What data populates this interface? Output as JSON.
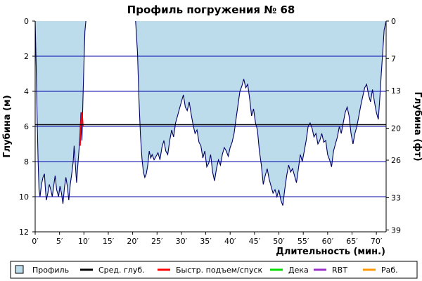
{
  "chart_data": {
    "type": "area",
    "title": "Профиль погружения № 68",
    "xlabel": "Длительность (мин.)",
    "ylabel_left": "Глубина (м)",
    "ylabel_right": "Глубина (фт)",
    "x_unit_suffix": "′",
    "xlim": [
      0,
      72
    ],
    "xticks": [
      0,
      5,
      10,
      15,
      20,
      25,
      30,
      35,
      40,
      45,
      50,
      55,
      60,
      65,
      70
    ],
    "ylim": [
      0,
      12
    ],
    "y_inverted": true,
    "yticks_m": [
      0,
      2,
      4,
      6,
      8,
      10,
      12
    ],
    "yticks_ft": [
      {
        "label": "0",
        "m": 0
      },
      {
        "label": "7",
        "m": 2.13
      },
      {
        "label": "13",
        "m": 3.96
      },
      {
        "label": "20",
        "m": 6.1
      },
      {
        "label": "26",
        "m": 7.92
      },
      {
        "label": "33",
        "m": 10.06
      },
      {
        "label": "39",
        "m": 11.89
      }
    ],
    "grid": true,
    "legend_position": "bottom",
    "colors": {
      "profile_fill": "#bcdcec",
      "profile_line": "#000066",
      "avg_depth": "#000000",
      "fast_ascent": "#ff0000",
      "grid": "#0000aa",
      "deco": "#00dd00",
      "rbt": "#9933cc",
      "work": "#ff9900"
    },
    "avg_depth_m": 5.9,
    "legend": [
      {
        "label": "Профиль",
        "kind": "box",
        "color": "#bcdcec"
      },
      {
        "label": "Сред. глуб.",
        "kind": "line",
        "color": "#000000"
      },
      {
        "label": "Быстр. подъем/спуск",
        "kind": "line",
        "color": "#ff0000"
      },
      {
        "label": "Дека",
        "kind": "line",
        "color": "#00dd00"
      },
      {
        "label": "RBT",
        "kind": "line",
        "color": "#9933cc"
      },
      {
        "label": "Раб.",
        "kind": "line",
        "color": "#ff9900"
      }
    ],
    "series": [
      {
        "segments": [
          [
            [
              0,
              0
            ],
            [
              0.2,
              2.5
            ],
            [
              0.4,
              5.5
            ],
            [
              0.6,
              8.0
            ],
            [
              0.8,
              9.6
            ],
            [
              1.0,
              10.0
            ],
            [
              1.3,
              9.3
            ],
            [
              1.6,
              8.9
            ],
            [
              1.9,
              8.7
            ],
            [
              2.1,
              9.6
            ],
            [
              2.3,
              10.2
            ],
            [
              2.6,
              9.8
            ],
            [
              2.9,
              9.3
            ],
            [
              3.2,
              9.6
            ],
            [
              3.5,
              10.0
            ],
            [
              3.8,
              9.4
            ],
            [
              4.1,
              8.8
            ],
            [
              4.4,
              9.6
            ],
            [
              4.8,
              10.0
            ],
            [
              5.1,
              9.4
            ],
            [
              5.4,
              9.8
            ],
            [
              5.7,
              10.4
            ],
            [
              6.0,
              9.5
            ],
            [
              6.3,
              8.9
            ],
            [
              6.6,
              9.4
            ],
            [
              6.9,
              10.2
            ],
            [
              7.2,
              9.3
            ],
            [
              7.5,
              8.7
            ],
            [
              7.8,
              8.0
            ],
            [
              8.0,
              7.1
            ],
            [
              8.3,
              8.4
            ],
            [
              8.5,
              9.2
            ],
            [
              8.7,
              8.4
            ],
            [
              9.0,
              7.3
            ],
            [
              9.2,
              6.3
            ],
            [
              9.4,
              5.2
            ],
            [
              9.6,
              6.8
            ],
            [
              9.8,
              4.5
            ],
            [
              10.0,
              2.5
            ],
            [
              10.2,
              0.6
            ],
            [
              10.4,
              0
            ]
          ],
          [
            [
              20.6,
              0
            ],
            [
              21.0,
              1.8
            ],
            [
              21.3,
              4.5
            ],
            [
              21.6,
              6.5
            ],
            [
              21.9,
              7.8
            ],
            [
              22.2,
              8.6
            ],
            [
              22.5,
              8.9
            ],
            [
              22.8,
              8.7
            ],
            [
              23.1,
              8.2
            ],
            [
              23.4,
              7.4
            ],
            [
              23.7,
              7.8
            ],
            [
              24.0,
              7.6
            ],
            [
              24.4,
              7.9
            ],
            [
              24.8,
              7.7
            ],
            [
              25.2,
              7.5
            ],
            [
              25.6,
              7.9
            ],
            [
              26.0,
              7.2
            ],
            [
              26.4,
              6.8
            ],
            [
              26.8,
              7.4
            ],
            [
              27.2,
              7.6
            ],
            [
              27.6,
              6.8
            ],
            [
              28.0,
              6.2
            ],
            [
              28.4,
              6.6
            ],
            [
              28.8,
              5.8
            ],
            [
              29.2,
              5.4
            ],
            [
              29.6,
              5.0
            ],
            [
              30.0,
              4.6
            ],
            [
              30.4,
              4.2
            ],
            [
              30.8,
              4.9
            ],
            [
              31.2,
              5.1
            ],
            [
              31.6,
              4.6
            ],
            [
              32.0,
              5.3
            ],
            [
              32.4,
              5.9
            ],
            [
              32.8,
              6.4
            ],
            [
              33.2,
              6.2
            ],
            [
              33.6,
              6.9
            ],
            [
              34.0,
              7.1
            ],
            [
              34.4,
              7.8
            ],
            [
              34.8,
              7.4
            ],
            [
              35.2,
              8.3
            ],
            [
              35.6,
              8.1
            ],
            [
              36.0,
              7.6
            ],
            [
              36.4,
              8.6
            ],
            [
              36.8,
              9.1
            ],
            [
              37.2,
              8.4
            ],
            [
              37.6,
              7.9
            ],
            [
              38.0,
              8.2
            ],
            [
              38.4,
              7.6
            ],
            [
              38.8,
              7.2
            ],
            [
              39.2,
              7.4
            ],
            [
              39.6,
              7.7
            ],
            [
              40.0,
              7.2
            ],
            [
              40.4,
              6.9
            ],
            [
              40.8,
              6.4
            ],
            [
              41.2,
              5.6
            ],
            [
              41.6,
              4.8
            ],
            [
              42.0,
              4.0
            ],
            [
              42.4,
              3.7
            ],
            [
              42.8,
              3.3
            ],
            [
              43.2,
              3.8
            ],
            [
              43.6,
              3.6
            ],
            [
              44.0,
              4.4
            ],
            [
              44.4,
              5.4
            ],
            [
              44.8,
              5.0
            ],
            [
              45.2,
              5.8
            ],
            [
              45.6,
              6.2
            ],
            [
              46.0,
              7.4
            ],
            [
              46.4,
              8.2
            ],
            [
              46.8,
              9.3
            ],
            [
              47.2,
              8.8
            ],
            [
              47.6,
              8.4
            ],
            [
              48.0,
              9.0
            ],
            [
              48.4,
              9.4
            ],
            [
              48.8,
              9.8
            ],
            [
              49.2,
              9.6
            ],
            [
              49.6,
              10.0
            ],
            [
              50.0,
              9.6
            ],
            [
              50.4,
              10.2
            ],
            [
              50.8,
              10.5
            ],
            [
              51.2,
              9.6
            ],
            [
              51.6,
              8.8
            ],
            [
              52.0,
              8.2
            ],
            [
              52.4,
              8.6
            ],
            [
              52.8,
              8.4
            ],
            [
              53.2,
              8.8
            ],
            [
              53.6,
              9.2
            ],
            [
              54.0,
              8.4
            ],
            [
              54.4,
              7.6
            ],
            [
              54.8,
              8.0
            ],
            [
              55.2,
              7.4
            ],
            [
              55.6,
              6.8
            ],
            [
              56.0,
              6.0
            ],
            [
              56.4,
              5.8
            ],
            [
              56.8,
              6.1
            ],
            [
              57.2,
              6.6
            ],
            [
              57.6,
              6.4
            ],
            [
              58.0,
              7.0
            ],
            [
              58.4,
              6.8
            ],
            [
              58.8,
              6.4
            ],
            [
              59.2,
              6.9
            ],
            [
              59.6,
              6.8
            ],
            [
              60.0,
              7.6
            ],
            [
              60.4,
              7.9
            ],
            [
              60.8,
              8.3
            ],
            [
              61.2,
              7.4
            ],
            [
              61.6,
              7.0
            ],
            [
              62.0,
              6.6
            ],
            [
              62.4,
              6.0
            ],
            [
              62.8,
              6.4
            ],
            [
              63.2,
              5.8
            ],
            [
              63.6,
              5.2
            ],
            [
              64.0,
              4.9
            ],
            [
              64.4,
              5.4
            ],
            [
              64.8,
              6.4
            ],
            [
              65.2,
              7.0
            ],
            [
              65.6,
              6.4
            ],
            [
              66.0,
              6.0
            ],
            [
              66.4,
              5.4
            ],
            [
              66.8,
              4.8
            ],
            [
              67.2,
              4.3
            ],
            [
              67.6,
              3.8
            ],
            [
              68.0,
              3.6
            ],
            [
              68.4,
              4.2
            ],
            [
              68.8,
              4.6
            ],
            [
              69.2,
              3.9
            ],
            [
              69.6,
              4.6
            ],
            [
              70.0,
              5.2
            ],
            [
              70.4,
              5.6
            ],
            [
              70.7,
              4.4
            ],
            [
              71.0,
              3.0
            ],
            [
              71.3,
              1.8
            ],
            [
              71.6,
              0.5
            ],
            [
              72.0,
              0
            ]
          ]
        ]
      }
    ],
    "fast_ascent_segments": [
      [
        [
          9.2,
          7.1
        ],
        [
          9.4,
          5.8
        ],
        [
          9.6,
          5.2
        ],
        [
          9.8,
          6.0
        ]
      ]
    ]
  }
}
